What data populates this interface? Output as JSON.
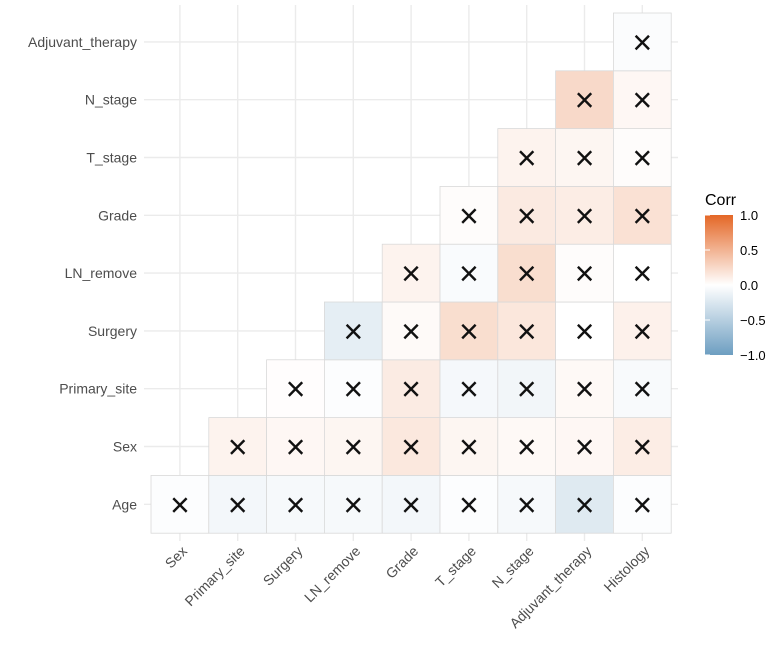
{
  "chart_data": {
    "type": "heatmap",
    "title": "",
    "xlabel": "",
    "ylabel": "",
    "x_categories": [
      "Sex",
      "Primary_site",
      "Surgery",
      "LN_remove",
      "Grade",
      "T_stage",
      "N_stage",
      "Adjuvant_therapy",
      "Histology"
    ],
    "y_categories": [
      "Age",
      "Sex",
      "Primary_site",
      "Surgery",
      "LN_remove",
      "Grade",
      "T_stage",
      "N_stage",
      "Adjuvant_therapy"
    ],
    "cell_marker": "×",
    "cells": [
      {
        "x": "Sex",
        "y": "Age",
        "value": -0.02
      },
      {
        "x": "Primary_site",
        "y": "Age",
        "value": -0.08
      },
      {
        "x": "Surgery",
        "y": "Age",
        "value": -0.06
      },
      {
        "x": "LN_remove",
        "y": "Age",
        "value": -0.06
      },
      {
        "x": "Grade",
        "y": "Age",
        "value": -0.08
      },
      {
        "x": "T_stage",
        "y": "Age",
        "value": -0.02
      },
      {
        "x": "N_stage",
        "y": "Age",
        "value": -0.06
      },
      {
        "x": "Adjuvant_therapy",
        "y": "Age",
        "value": -0.22
      },
      {
        "x": "Histology",
        "y": "Age",
        "value": -0.02
      },
      {
        "x": "Primary_site",
        "y": "Sex",
        "value": 0.08
      },
      {
        "x": "Surgery",
        "y": "Sex",
        "value": 0.05
      },
      {
        "x": "LN_remove",
        "y": "Sex",
        "value": 0.06
      },
      {
        "x": "Grade",
        "y": "Sex",
        "value": 0.15
      },
      {
        "x": "T_stage",
        "y": "Sex",
        "value": 0.06
      },
      {
        "x": "N_stage",
        "y": "Sex",
        "value": 0.04
      },
      {
        "x": "Adjuvant_therapy",
        "y": "Sex",
        "value": 0.05
      },
      {
        "x": "Histology",
        "y": "Sex",
        "value": 0.12
      },
      {
        "x": "Surgery",
        "y": "Primary_site",
        "value": 0.01
      },
      {
        "x": "LN_remove",
        "y": "Primary_site",
        "value": -0.02
      },
      {
        "x": "Grade",
        "y": "Primary_site",
        "value": 0.13
      },
      {
        "x": "T_stage",
        "y": "Primary_site",
        "value": -0.07
      },
      {
        "x": "N_stage",
        "y": "Primary_site",
        "value": -0.09
      },
      {
        "x": "Adjuvant_therapy",
        "y": "Primary_site",
        "value": 0.04
      },
      {
        "x": "Histology",
        "y": "Primary_site",
        "value": -0.05
      },
      {
        "x": "LN_remove",
        "y": "Surgery",
        "value": -0.18
      },
      {
        "x": "Grade",
        "y": "Surgery",
        "value": 0.03
      },
      {
        "x": "T_stage",
        "y": "Surgery",
        "value": 0.22
      },
      {
        "x": "N_stage",
        "y": "Surgery",
        "value": 0.16
      },
      {
        "x": "Adjuvant_therapy",
        "y": "Surgery",
        "value": 0.0
      },
      {
        "x": "Histology",
        "y": "Surgery",
        "value": 0.09
      },
      {
        "x": "Grade",
        "y": "LN_remove",
        "value": 0.08
      },
      {
        "x": "T_stage",
        "y": "LN_remove",
        "value": -0.04
      },
      {
        "x": "N_stage",
        "y": "LN_remove",
        "value": 0.22
      },
      {
        "x": "Adjuvant_therapy",
        "y": "LN_remove",
        "value": 0.02
      },
      {
        "x": "Histology",
        "y": "LN_remove",
        "value": 0.0
      },
      {
        "x": "T_stage",
        "y": "Grade",
        "value": 0.02
      },
      {
        "x": "N_stage",
        "y": "Grade",
        "value": 0.14
      },
      {
        "x": "Adjuvant_therapy",
        "y": "Grade",
        "value": 0.12
      },
      {
        "x": "Histology",
        "y": "Grade",
        "value": 0.2
      },
      {
        "x": "N_stage",
        "y": "T_stage",
        "value": 0.08
      },
      {
        "x": "Adjuvant_therapy",
        "y": "T_stage",
        "value": 0.06
      },
      {
        "x": "Histology",
        "y": "T_stage",
        "value": 0.02
      },
      {
        "x": "Adjuvant_therapy",
        "y": "N_stage",
        "value": 0.25
      },
      {
        "x": "Histology",
        "y": "N_stage",
        "value": 0.05
      },
      {
        "x": "Histology",
        "y": "Adjuvant_therapy",
        "value": -0.03
      }
    ],
    "color_scale": {
      "low": "#6D9EC1",
      "mid": "#FFFFFF",
      "high": "#E46726"
    },
    "legend": {
      "title": "Corr",
      "position": "right",
      "range": [
        -1.0,
        1.0
      ],
      "ticks": [
        1.0,
        0.5,
        0.0,
        -0.5,
        -1.0
      ],
      "tick_labels": [
        "1.0",
        "0.5",
        "0.0",
        "−0.5",
        "−1.0"
      ]
    },
    "grid": true
  }
}
